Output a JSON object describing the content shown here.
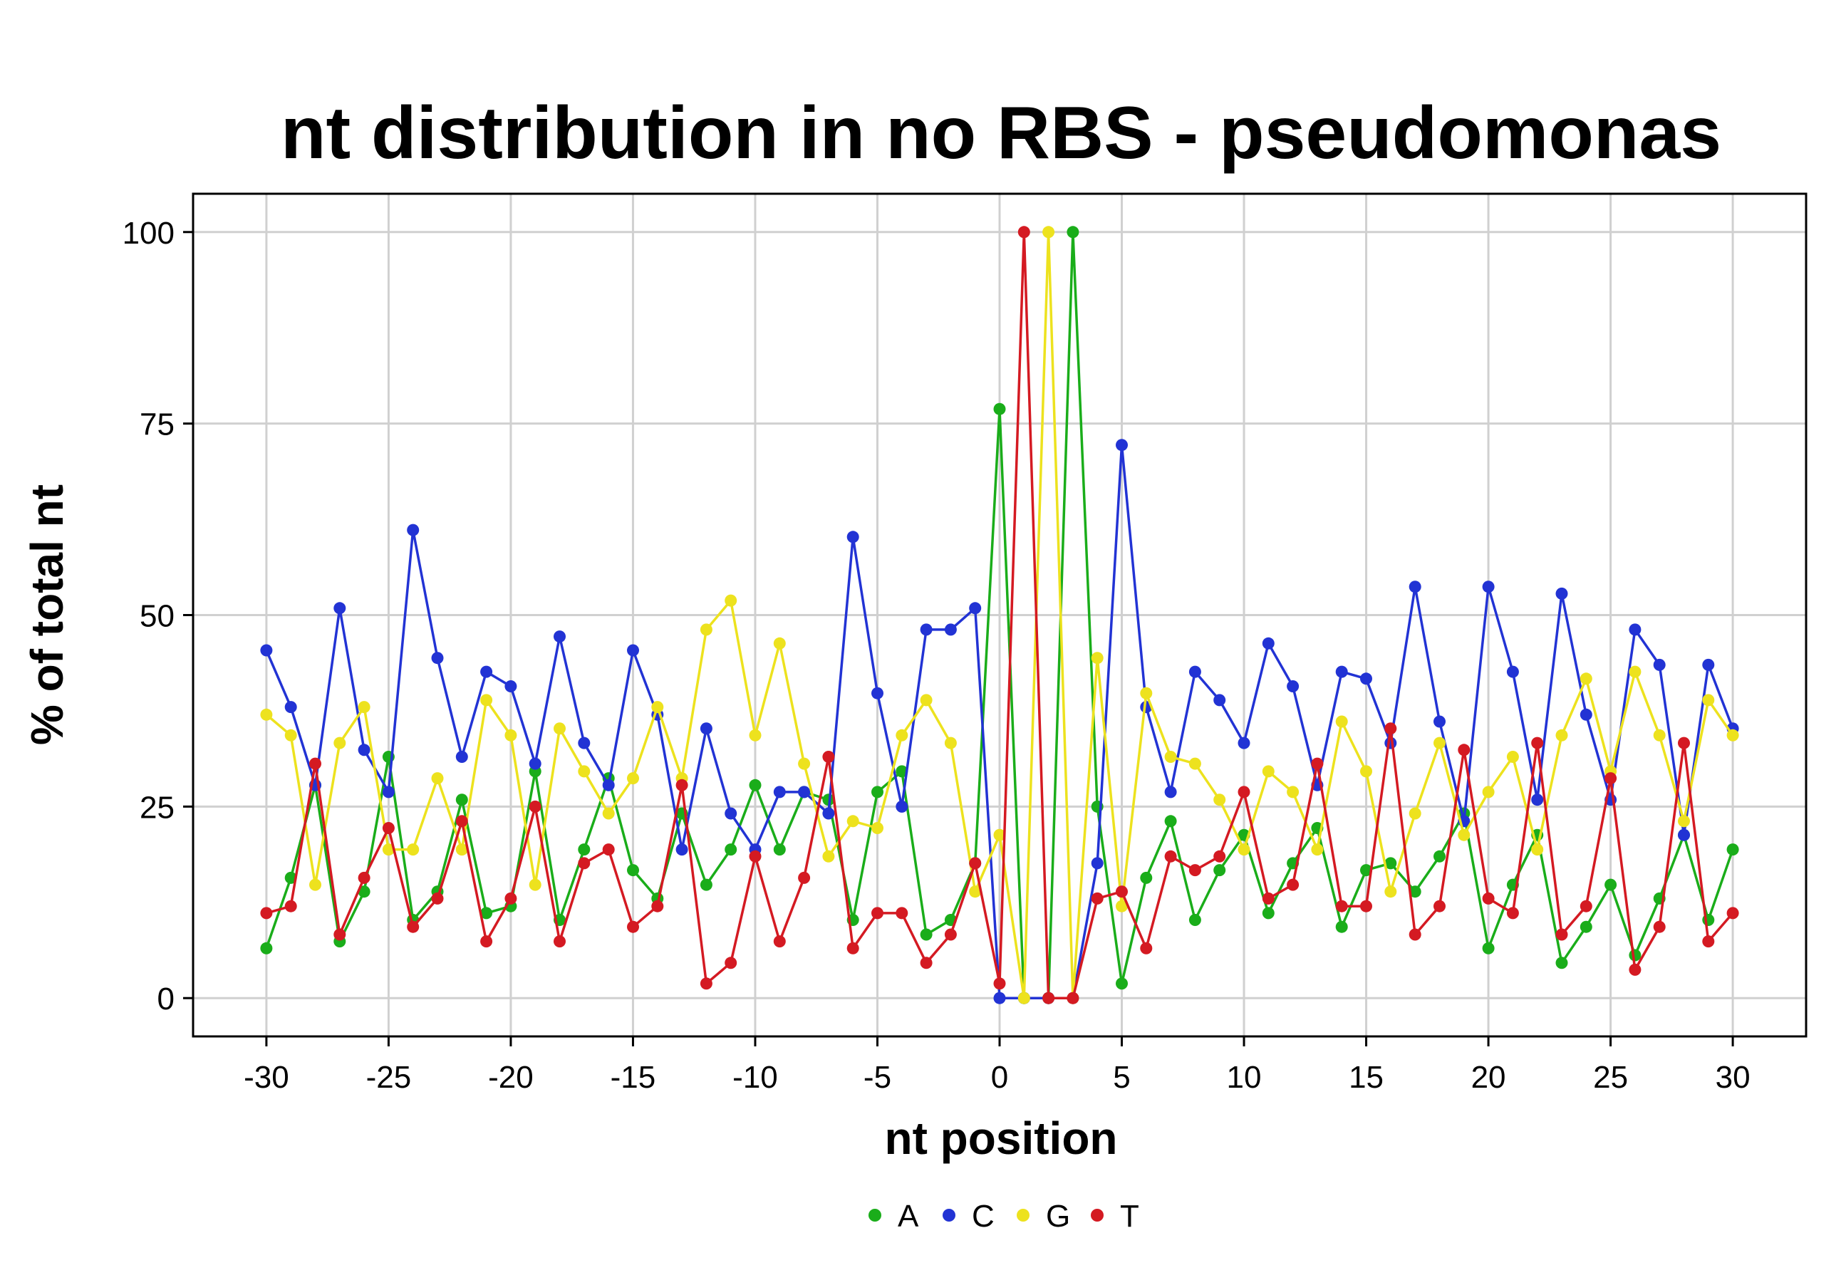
{
  "chart_data": {
    "type": "line",
    "title": "nt distribution in no RBS - pseudomonas",
    "xlabel": "nt position",
    "ylabel": "% of total nt",
    "xlim": [
      -33,
      33
    ],
    "ylim": [
      -5,
      105
    ],
    "x_ticks": [
      "-30",
      "-25",
      "-20",
      "-15",
      "-10",
      "-5",
      "0",
      "5",
      "10",
      "15",
      "20",
      "25",
      "30"
    ],
    "x_tick_values": [
      -30,
      -25,
      -20,
      -15,
      -10,
      -5,
      0,
      5,
      10,
      15,
      20,
      25,
      30
    ],
    "y_ticks": [
      "0",
      "25",
      "50",
      "75",
      "100"
    ],
    "y_tick_values": [
      0,
      25,
      50,
      75,
      100
    ],
    "grid": true,
    "legend_position": "bottom",
    "x": [
      -30,
      -29,
      -28,
      -27,
      -26,
      -25,
      -24,
      -23,
      -22,
      -21,
      -20,
      -19,
      -18,
      -17,
      -16,
      -15,
      -14,
      -13,
      -12,
      -11,
      -10,
      -9,
      -8,
      -7,
      -6,
      -5,
      -4,
      -3,
      -2,
      -1,
      0,
      1,
      2,
      3,
      4,
      5,
      6,
      7,
      8,
      9,
      10,
      11,
      12,
      13,
      14,
      15,
      16,
      17,
      18,
      19,
      20,
      21,
      22,
      23,
      24,
      25,
      26,
      27,
      28,
      29,
      30
    ],
    "series": [
      {
        "name": "A",
        "color": "#1aad1a",
        "values": [
          6.5,
          15.7,
          27.8,
          7.4,
          13.9,
          31.5,
          10.2,
          13.9,
          25.9,
          11.1,
          12.0,
          29.6,
          10.2,
          19.4,
          28.7,
          16.7,
          13.0,
          24.1,
          14.8,
          19.4,
          27.8,
          19.4,
          26.9,
          25.9,
          10.2,
          26.9,
          29.6,
          8.3,
          10.2,
          17.6,
          76.9,
          0,
          0,
          100,
          25.0,
          1.9,
          15.7,
          23.1,
          10.2,
          16.7,
          21.3,
          11.1,
          17.6,
          22.2,
          9.3,
          16.7,
          17.6,
          13.9,
          18.5,
          24.1,
          6.5,
          14.8,
          21.3,
          4.6,
          9.3,
          14.8,
          5.6,
          13.0,
          21.3,
          10.2,
          19.4
        ]
      },
      {
        "name": "C",
        "color": "#2233d4",
        "values": [
          45.4,
          38.0,
          27.8,
          50.9,
          32.4,
          26.9,
          61.1,
          44.4,
          31.5,
          42.6,
          40.7,
          30.6,
          47.2,
          33.3,
          27.8,
          45.4,
          37.0,
          19.4,
          35.2,
          24.1,
          19.4,
          26.9,
          26.9,
          24.1,
          60.2,
          39.8,
          25.0,
          48.1,
          48.1,
          50.9,
          0,
          0,
          0,
          0,
          17.6,
          72.2,
          38.0,
          26.9,
          42.6,
          38.9,
          33.3,
          46.3,
          40.7,
          27.8,
          42.6,
          41.7,
          33.3,
          53.7,
          36.1,
          23.1,
          53.7,
          42.6,
          25.9,
          52.8,
          37.0,
          25.9,
          48.1,
          43.5,
          21.3,
          43.5,
          35.2
        ]
      },
      {
        "name": "G",
        "color": "#ede21e",
        "values": [
          37.0,
          34.3,
          14.8,
          33.3,
          38.0,
          19.4,
          19.4,
          28.7,
          19.4,
          38.9,
          34.3,
          14.8,
          35.2,
          29.6,
          24.1,
          28.7,
          38.0,
          28.7,
          48.1,
          51.9,
          34.3,
          46.3,
          30.6,
          18.5,
          23.1,
          22.2,
          34.3,
          38.9,
          33.3,
          13.9,
          21.3,
          0,
          100,
          0,
          44.4,
          12.0,
          39.8,
          31.5,
          30.6,
          25.9,
          19.4,
          29.6,
          26.9,
          19.4,
          36.1,
          29.6,
          13.9,
          24.1,
          33.3,
          21.3,
          26.9,
          31.5,
          19.4,
          34.3,
          41.7,
          29.6,
          42.6,
          34.3,
          23.1,
          38.9,
          34.3
        ]
      },
      {
        "name": "T",
        "color": "#d41a22",
        "values": [
          11.1,
          12.0,
          30.6,
          8.3,
          15.7,
          22.2,
          9.3,
          13.0,
          23.1,
          7.4,
          13.0,
          25.0,
          7.4,
          17.6,
          19.4,
          9.3,
          12.0,
          27.8,
          1.9,
          4.6,
          18.5,
          7.4,
          15.7,
          31.5,
          6.5,
          11.1,
          11.1,
          4.6,
          8.3,
          17.6,
          1.9,
          100,
          0,
          0,
          13.0,
          13.9,
          6.5,
          18.5,
          16.7,
          18.5,
          26.9,
          13.0,
          14.8,
          30.6,
          12.0,
          12.0,
          35.2,
          8.3,
          12.0,
          32.4,
          13.0,
          11.1,
          33.3,
          8.3,
          12.0,
          28.7,
          3.7,
          9.3,
          33.3,
          7.4,
          11.1
        ]
      }
    ]
  }
}
